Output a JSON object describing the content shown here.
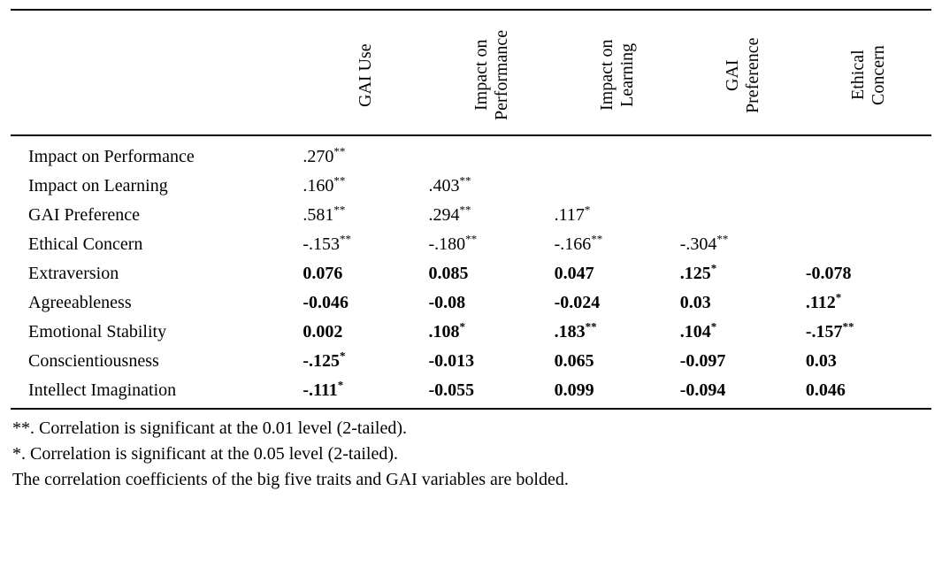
{
  "table": {
    "headers": [
      "GAI Use",
      "Impact on Performance",
      "Impact on Learning",
      "GAI Preference",
      "Ethical Concern"
    ],
    "rows": [
      {
        "label": "Impact on Performance",
        "bold": false,
        "cells": [
          {
            "v": ".270",
            "s": "**"
          }
        ]
      },
      {
        "label": "Impact on Learning",
        "bold": false,
        "cells": [
          {
            "v": ".160",
            "s": "**"
          },
          {
            "v": ".403",
            "s": "**"
          }
        ]
      },
      {
        "label": "GAI Preference",
        "bold": false,
        "cells": [
          {
            "v": ".581",
            "s": "**"
          },
          {
            "v": ".294",
            "s": "**"
          },
          {
            "v": ".117",
            "s": "*"
          }
        ]
      },
      {
        "label": "Ethical Concern",
        "bold": false,
        "cells": [
          {
            "v": "-.153",
            "s": "**"
          },
          {
            "v": "-.180",
            "s": "**"
          },
          {
            "v": "-.166",
            "s": "**"
          },
          {
            "v": "-.304",
            "s": "**"
          }
        ]
      },
      {
        "label": "Extraversion",
        "bold": true,
        "cells": [
          {
            "v": "0.076"
          },
          {
            "v": "0.085"
          },
          {
            "v": "0.047"
          },
          {
            "v": ".125",
            "s": "*"
          },
          {
            "v": "-0.078"
          }
        ]
      },
      {
        "label": "Agreeableness",
        "bold": true,
        "cells": [
          {
            "v": "-0.046"
          },
          {
            "v": "-0.08"
          },
          {
            "v": "-0.024"
          },
          {
            "v": "0.03"
          },
          {
            "v": ".112",
            "s": "*"
          }
        ]
      },
      {
        "label": "Emotional Stability",
        "bold": true,
        "cells": [
          {
            "v": "0.002"
          },
          {
            "v": ".108",
            "s": "*"
          },
          {
            "v": ".183",
            "s": "**"
          },
          {
            "v": ".104",
            "s": "*"
          },
          {
            "v": "-.157",
            "s": "**"
          }
        ]
      },
      {
        "label": "Conscientiousness",
        "bold": true,
        "cells": [
          {
            "v": "-.125",
            "s": "*"
          },
          {
            "v": "-0.013"
          },
          {
            "v": "0.065"
          },
          {
            "v": "-0.097"
          },
          {
            "v": "0.03"
          }
        ]
      },
      {
        "label": "Intellect Imagination",
        "bold": true,
        "cells": [
          {
            "v": "-.111",
            "s": "*"
          },
          {
            "v": "-0.055"
          },
          {
            "v": "0.099"
          },
          {
            "v": "-0.094"
          },
          {
            "v": "0.046"
          }
        ]
      }
    ]
  },
  "notes": [
    "**. Correlation is significant at the 0.01 level (2-tailed).",
    "*. Correlation is significant at the 0.05 level (2-tailed).",
    "The correlation coefficients of the big five traits and GAI variables are bolded."
  ]
}
